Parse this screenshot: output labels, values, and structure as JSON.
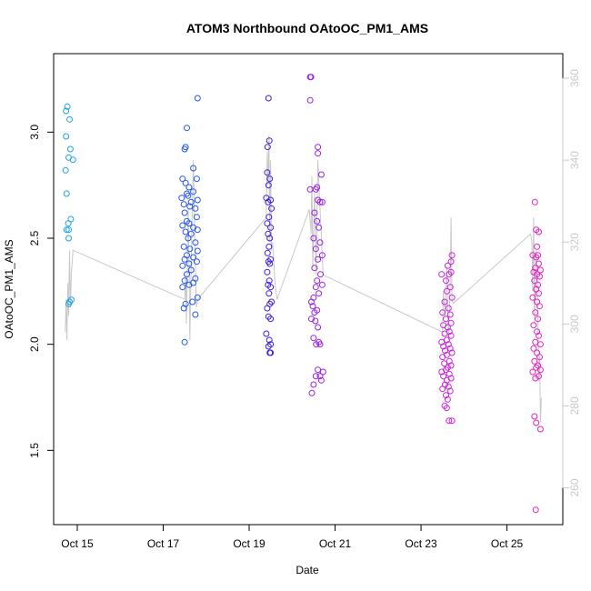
{
  "chart_data": {
    "type": "scatter",
    "title": "ATOM3 Northbound OAtoOC_PM1_AMS",
    "xlabel": "Date",
    "ylabel": "OAtoOC_PM1_AMS",
    "x_unit": "day of October",
    "xlim": [
      14.45,
      26.3
    ],
    "ylim": [
      1.15,
      3.37
    ],
    "x_ticks": [
      15,
      17,
      19,
      21,
      23,
      25
    ],
    "x_tick_labels": [
      "Oct 15",
      "Oct 17",
      "Oct 19",
      "Oct 21",
      "Oct 23",
      "Oct 25"
    ],
    "y_ticks": [
      1.5,
      2.0,
      2.5,
      3.0
    ],
    "y_tick_labels": [
      "1.5",
      "2.0",
      "2.5",
      "3.0"
    ],
    "y2_lim": [
      251,
      366
    ],
    "y2_ticks": [
      260,
      280,
      300,
      320,
      340,
      360
    ],
    "y2_tick_labels": [
      "260",
      "280",
      "300",
      "320",
      "340",
      "360"
    ],
    "y2_color": "#c8c8c8",
    "grid": false,
    "series": [
      {
        "color": "#1aa3e8",
        "points": [
          [
            14.74,
            3.1
          ],
          [
            14.77,
            3.12
          ],
          [
            14.82,
            3.06
          ],
          [
            14.74,
            2.98
          ],
          [
            14.84,
            2.92
          ],
          [
            14.8,
            2.88
          ],
          [
            14.9,
            2.87
          ],
          [
            14.73,
            2.82
          ],
          [
            14.75,
            2.71
          ],
          [
            14.85,
            2.59
          ],
          [
            14.79,
            2.57
          ],
          [
            14.75,
            2.54
          ],
          [
            14.8,
            2.54
          ],
          [
            14.8,
            2.5
          ],
          [
            14.86,
            2.21
          ],
          [
            14.82,
            2.2
          ],
          [
            14.8,
            2.19
          ]
        ]
      },
      {
        "color": "#2255f0",
        "points": [
          [
            17.8,
            3.16
          ],
          [
            17.55,
            3.02
          ],
          [
            17.52,
            2.93
          ],
          [
            17.5,
            2.92
          ],
          [
            17.7,
            2.83
          ],
          [
            17.45,
            2.78
          ],
          [
            17.78,
            2.78
          ],
          [
            17.52,
            2.76
          ],
          [
            17.6,
            2.74
          ],
          [
            17.7,
            2.72
          ],
          [
            17.55,
            2.71
          ],
          [
            17.58,
            2.7
          ],
          [
            17.43,
            2.69
          ],
          [
            17.8,
            2.68
          ],
          [
            17.65,
            2.67
          ],
          [
            17.48,
            2.66
          ],
          [
            17.62,
            2.65
          ],
          [
            17.75,
            2.64
          ],
          [
            17.5,
            2.62
          ],
          [
            17.78,
            2.6
          ],
          [
            17.55,
            2.58
          ],
          [
            17.6,
            2.57
          ],
          [
            17.45,
            2.56
          ],
          [
            17.7,
            2.55
          ],
          [
            17.8,
            2.54
          ],
          [
            17.52,
            2.53
          ],
          [
            17.65,
            2.52
          ],
          [
            17.58,
            2.5
          ],
          [
            17.75,
            2.48
          ],
          [
            17.48,
            2.46
          ],
          [
            17.62,
            2.45
          ],
          [
            17.8,
            2.44
          ],
          [
            17.55,
            2.42
          ],
          [
            17.7,
            2.41
          ],
          [
            17.5,
            2.4
          ],
          [
            17.78,
            2.39
          ],
          [
            17.6,
            2.38
          ],
          [
            17.45,
            2.37
          ],
          [
            17.65,
            2.35
          ],
          [
            17.55,
            2.33
          ],
          [
            17.75,
            2.31
          ],
          [
            17.5,
            2.3
          ],
          [
            17.7,
            2.29
          ],
          [
            17.6,
            2.28
          ],
          [
            17.45,
            2.27
          ],
          [
            17.8,
            2.22
          ],
          [
            17.68,
            2.2
          ],
          [
            17.52,
            2.19
          ],
          [
            17.48,
            2.17
          ],
          [
            17.75,
            2.14
          ],
          [
            17.5,
            2.01
          ]
        ]
      },
      {
        "color": "#3a1ee6",
        "points": [
          [
            19.45,
            3.16
          ],
          [
            19.47,
            2.96
          ],
          [
            19.43,
            2.93
          ],
          [
            19.42,
            2.81
          ],
          [
            19.48,
            2.78
          ],
          [
            19.45,
            2.75
          ],
          [
            19.4,
            2.69
          ],
          [
            19.5,
            2.68
          ],
          [
            19.44,
            2.67
          ],
          [
            19.52,
            2.64
          ],
          [
            19.46,
            2.6
          ],
          [
            19.42,
            2.57
          ],
          [
            19.5,
            2.55
          ],
          [
            19.44,
            2.52
          ],
          [
            19.48,
            2.5
          ],
          [
            19.46,
            2.46
          ],
          [
            19.43,
            2.43
          ],
          [
            19.5,
            2.4
          ],
          [
            19.45,
            2.39
          ],
          [
            19.48,
            2.38
          ],
          [
            19.42,
            2.34
          ],
          [
            19.47,
            2.3
          ],
          [
            19.44,
            2.28
          ],
          [
            19.5,
            2.27
          ],
          [
            19.46,
            2.24
          ],
          [
            19.52,
            2.2
          ],
          [
            19.48,
            2.19
          ],
          [
            19.42,
            2.17
          ],
          [
            19.45,
            2.13
          ],
          [
            19.5,
            2.12
          ],
          [
            19.4,
            2.05
          ],
          [
            19.47,
            2.02
          ],
          [
            19.5,
            2.0
          ],
          [
            19.45,
            1.99
          ],
          [
            19.48,
            1.96
          ],
          [
            19.5,
            1.96
          ]
        ]
      },
      {
        "color": "#9a1ee6",
        "points": [
          [
            20.42,
            3.26
          ],
          [
            20.44,
            3.26
          ],
          [
            20.42,
            3.15
          ],
          [
            20.6,
            2.93
          ],
          [
            20.6,
            2.9
          ],
          [
            20.68,
            2.8
          ],
          [
            20.58,
            2.74
          ],
          [
            20.55,
            2.73
          ],
          [
            20.42,
            2.73
          ],
          [
            20.6,
            2.68
          ],
          [
            20.65,
            2.67
          ],
          [
            20.7,
            2.67
          ],
          [
            20.52,
            2.62
          ],
          [
            20.58,
            2.58
          ],
          [
            20.62,
            2.55
          ],
          [
            20.5,
            2.5
          ],
          [
            20.65,
            2.48
          ],
          [
            20.55,
            2.45
          ],
          [
            20.7,
            2.42
          ],
          [
            20.6,
            2.4
          ],
          [
            20.52,
            2.36
          ],
          [
            20.66,
            2.33
          ],
          [
            20.58,
            2.3
          ],
          [
            20.7,
            2.28
          ],
          [
            20.55,
            2.27
          ],
          [
            20.62,
            2.24
          ],
          [
            20.5,
            2.22
          ],
          [
            20.45,
            2.2
          ],
          [
            20.48,
            2.18
          ],
          [
            20.58,
            2.16
          ],
          [
            20.52,
            2.15
          ],
          [
            20.45,
            2.12
          ],
          [
            20.54,
            2.11
          ],
          [
            20.6,
            2.08
          ],
          [
            20.5,
            2.03
          ],
          [
            20.62,
            2.01
          ],
          [
            20.56,
            2.0
          ],
          [
            20.65,
            2.0
          ],
          [
            20.6,
            1.88
          ],
          [
            20.72,
            1.87
          ],
          [
            20.65,
            1.85
          ],
          [
            20.55,
            1.85
          ],
          [
            20.68,
            1.83
          ],
          [
            20.5,
            1.81
          ],
          [
            20.46,
            1.77
          ]
        ]
      },
      {
        "color": "#cc22dd",
        "points": [
          [
            23.72,
            2.42
          ],
          [
            23.7,
            2.39
          ],
          [
            23.62,
            2.37
          ],
          [
            23.7,
            2.34
          ],
          [
            23.48,
            2.33
          ],
          [
            23.65,
            2.33
          ],
          [
            23.58,
            2.3
          ],
          [
            23.68,
            2.27
          ],
          [
            23.6,
            2.25
          ],
          [
            23.72,
            2.22
          ],
          [
            23.55,
            2.2
          ],
          [
            23.64,
            2.17
          ],
          [
            23.5,
            2.15
          ],
          [
            23.68,
            2.14
          ],
          [
            23.58,
            2.12
          ],
          [
            23.7,
            2.1
          ],
          [
            23.52,
            2.09
          ],
          [
            23.62,
            2.08
          ],
          [
            23.66,
            2.06
          ],
          [
            23.55,
            2.05
          ],
          [
            23.7,
            2.04
          ],
          [
            23.6,
            2.02
          ],
          [
            23.48,
            2.01
          ],
          [
            23.64,
            2.0
          ],
          [
            23.52,
            1.99
          ],
          [
            23.68,
            1.98
          ],
          [
            23.56,
            1.97
          ],
          [
            23.72,
            1.96
          ],
          [
            23.6,
            1.95
          ],
          [
            23.5,
            1.94
          ],
          [
            23.66,
            1.92
          ],
          [
            23.54,
            1.91
          ],
          [
            23.7,
            1.9
          ],
          [
            23.62,
            1.89
          ],
          [
            23.58,
            1.88
          ],
          [
            23.48,
            1.87
          ],
          [
            23.66,
            1.86
          ],
          [
            23.52,
            1.85
          ],
          [
            23.7,
            1.84
          ],
          [
            23.6,
            1.83
          ],
          [
            23.56,
            1.81
          ],
          [
            23.64,
            1.8
          ],
          [
            23.5,
            1.79
          ],
          [
            23.68,
            1.78
          ],
          [
            23.58,
            1.76
          ],
          [
            23.62,
            1.74
          ],
          [
            23.55,
            1.71
          ],
          [
            23.6,
            1.7
          ],
          [
            23.65,
            1.64
          ],
          [
            23.72,
            1.64
          ]
        ]
      },
      {
        "color": "#e81ec8",
        "points": [
          [
            25.65,
            2.67
          ],
          [
            25.68,
            2.54
          ],
          [
            25.74,
            2.53
          ],
          [
            25.7,
            2.46
          ],
          [
            25.72,
            2.42
          ],
          [
            25.6,
            2.42
          ],
          [
            25.68,
            2.41
          ],
          [
            25.74,
            2.38
          ],
          [
            25.66,
            2.36
          ],
          [
            25.78,
            2.35
          ],
          [
            25.62,
            2.34
          ],
          [
            25.7,
            2.33
          ],
          [
            25.76,
            2.32
          ],
          [
            25.64,
            2.3
          ],
          [
            25.72,
            2.28
          ],
          [
            25.68,
            2.26
          ],
          [
            25.74,
            2.24
          ],
          [
            25.6,
            2.22
          ],
          [
            25.7,
            2.2
          ],
          [
            25.76,
            2.18
          ],
          [
            25.66,
            2.15
          ],
          [
            25.72,
            2.12
          ],
          [
            25.62,
            2.09
          ],
          [
            25.7,
            2.06
          ],
          [
            25.74,
            2.04
          ],
          [
            25.66,
            2.01
          ],
          [
            25.78,
            2.0
          ],
          [
            25.62,
            1.98
          ],
          [
            25.7,
            1.96
          ],
          [
            25.76,
            1.94
          ],
          [
            25.64,
            1.92
          ],
          [
            25.72,
            1.9
          ],
          [
            25.68,
            1.89
          ],
          [
            25.78,
            1.88
          ],
          [
            25.6,
            1.87
          ],
          [
            25.74,
            1.85
          ],
          [
            25.66,
            1.84
          ],
          [
            25.64,
            1.66
          ],
          [
            25.68,
            1.63
          ],
          [
            25.78,
            1.6
          ],
          [
            25.67,
            1.22
          ]
        ]
      }
    ],
    "line": {
      "axis": "y2",
      "color": "#c8c8c8",
      "points": [
        [
          14.72,
          298
        ],
        [
          14.74,
          306
        ],
        [
          14.76,
          296
        ],
        [
          14.78,
          310
        ],
        [
          14.8,
          302
        ],
        [
          14.82,
          318
        ],
        [
          14.84,
          304
        ],
        [
          14.86,
          312
        ],
        [
          14.9,
          318
        ],
        [
          17.5,
          306
        ],
        [
          17.52,
          312
        ],
        [
          17.54,
          300
        ],
        [
          17.58,
          328
        ],
        [
          17.6,
          316
        ],
        [
          17.62,
          296
        ],
        [
          17.66,
          320
        ],
        [
          17.7,
          340
        ],
        [
          17.74,
          318
        ],
        [
          17.77,
          304
        ],
        [
          17.8,
          306
        ],
        [
          19.4,
          326
        ],
        [
          19.42,
          342
        ],
        [
          19.44,
          334
        ],
        [
          19.46,
          346
        ],
        [
          19.48,
          320
        ],
        [
          19.5,
          340
        ],
        [
          19.52,
          318
        ],
        [
          19.55,
          320
        ],
        [
          19.6,
          310
        ],
        [
          19.65,
          306
        ],
        [
          20.4,
          328
        ],
        [
          20.44,
          322
        ],
        [
          20.46,
          336
        ],
        [
          20.48,
          314
        ],
        [
          20.52,
          332
        ],
        [
          20.56,
          312
        ],
        [
          20.6,
          340
        ],
        [
          20.64,
          330
        ],
        [
          20.68,
          322
        ],
        [
          20.72,
          312
        ],
        [
          23.5,
          298
        ],
        [
          23.52,
          308
        ],
        [
          23.56,
          302
        ],
        [
          23.6,
          314
        ],
        [
          23.64,
          296
        ],
        [
          23.68,
          310
        ],
        [
          23.7,
          326
        ],
        [
          23.72,
          306
        ],
        [
          23.75,
          305
        ],
        [
          25.55,
          322
        ],
        [
          25.58,
          320
        ],
        [
          25.6,
          308
        ],
        [
          25.62,
          326
        ],
        [
          25.64,
          300
        ],
        [
          25.68,
          318
        ],
        [
          25.7,
          312
        ],
        [
          25.72,
          300
        ],
        [
          25.74,
          286
        ],
        [
          25.76,
          292
        ],
        [
          25.78,
          276
        ],
        [
          25.8,
          282
        ]
      ]
    }
  }
}
